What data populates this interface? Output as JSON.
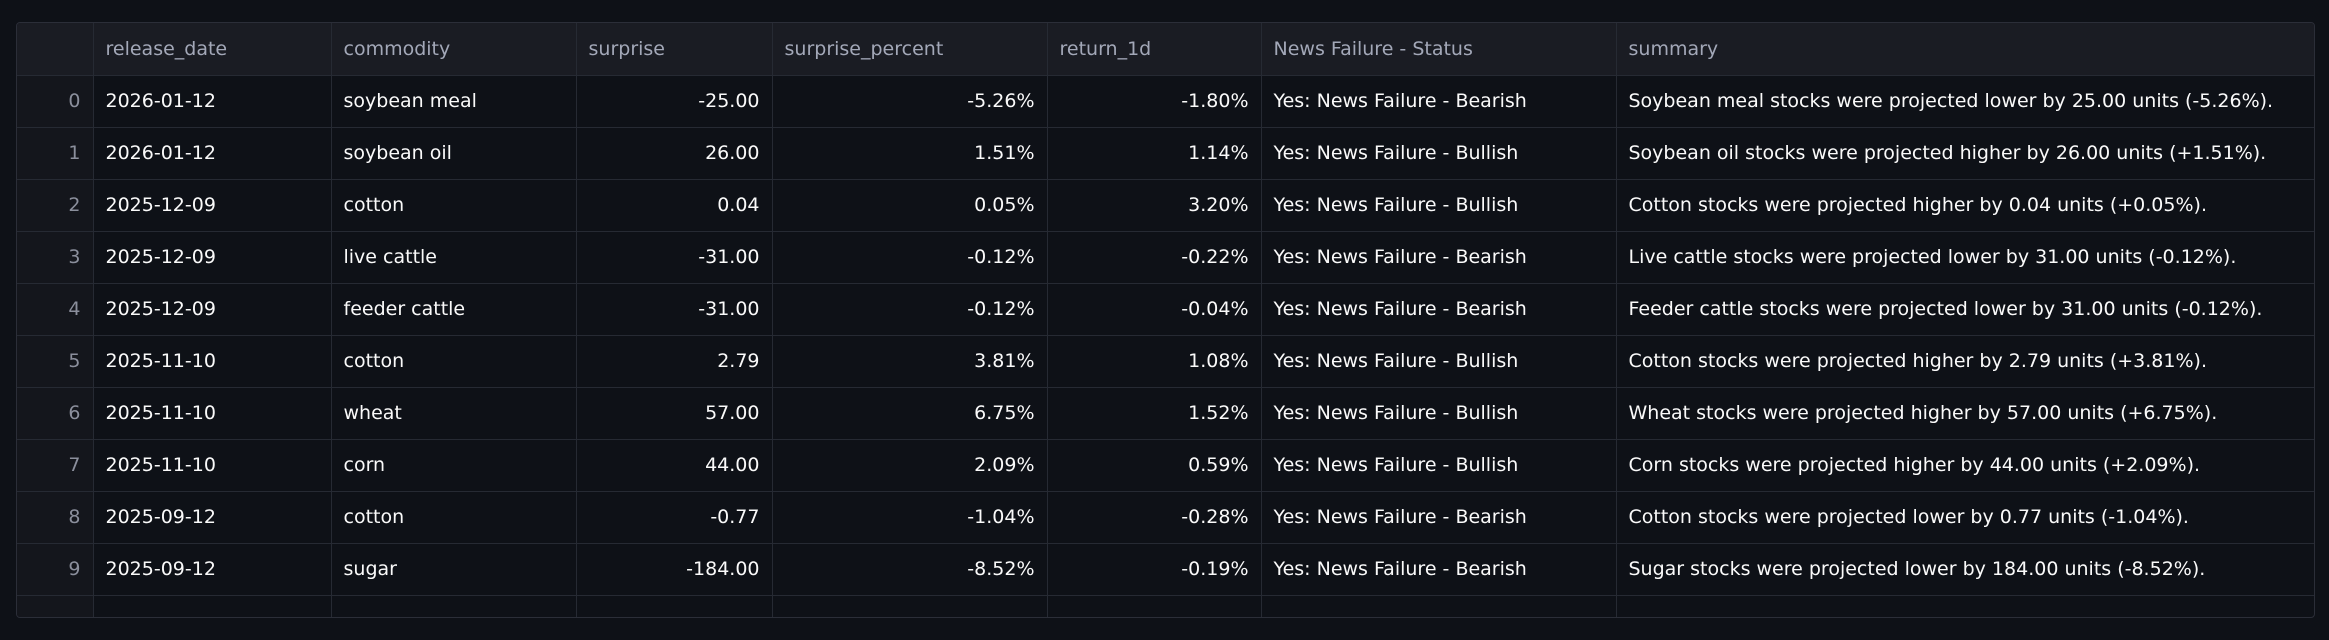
{
  "table": {
    "columns": [
      "release_date",
      "commodity",
      "surprise",
      "surprise_percent",
      "return_1d",
      "News Failure - Status",
      "summary"
    ],
    "index": [
      "0",
      "1",
      "2",
      "3",
      "4",
      "5",
      "6",
      "7",
      "8",
      "9"
    ],
    "rows": [
      [
        "2026-01-12",
        "soybean meal",
        "-25.00",
        "-5.26%",
        "-1.80%",
        "Yes: News Failure - Bearish",
        "Soybean meal stocks were projected lower by 25.00 units (-5.26%)."
      ],
      [
        "2026-01-12",
        "soybean oil",
        "26.00",
        "1.51%",
        "1.14%",
        "Yes: News Failure - Bullish",
        "Soybean oil stocks were projected higher by 26.00 units (+1.51%)."
      ],
      [
        "2025-12-09",
        "cotton",
        "0.04",
        "0.05%",
        "3.20%",
        "Yes: News Failure - Bullish",
        "Cotton stocks were projected higher by 0.04 units (+0.05%)."
      ],
      [
        "2025-12-09",
        "live cattle",
        "-31.00",
        "-0.12%",
        "-0.22%",
        "Yes: News Failure - Bearish",
        "Live cattle stocks were projected lower by 31.00 units (-0.12%)."
      ],
      [
        "2025-12-09",
        "feeder cattle",
        "-31.00",
        "-0.12%",
        "-0.04%",
        "Yes: News Failure - Bearish",
        "Feeder cattle stocks were projected lower by 31.00 units (-0.12%)."
      ],
      [
        "2025-11-10",
        "cotton",
        "2.79",
        "3.81%",
        "1.08%",
        "Yes: News Failure - Bullish",
        "Cotton stocks were projected higher by 2.79 units (+3.81%)."
      ],
      [
        "2025-11-10",
        "wheat",
        "57.00",
        "6.75%",
        "1.52%",
        "Yes: News Failure - Bullish",
        "Wheat stocks were projected higher by 57.00 units (+6.75%)."
      ],
      [
        "2025-11-10",
        "corn",
        "44.00",
        "2.09%",
        "0.59%",
        "Yes: News Failure - Bullish",
        "Corn stocks were projected higher by 44.00 units (+2.09%)."
      ],
      [
        "2025-09-12",
        "cotton",
        "-0.77",
        "-1.04%",
        "-0.28%",
        "Yes: News Failure - Bearish",
        "Cotton stocks were projected lower by 0.77 units (-1.04%)."
      ],
      [
        "2025-09-12",
        "sugar",
        "-184.00",
        "-8.52%",
        "-0.19%",
        "Yes: News Failure - Bearish",
        "Sugar stocks were projected lower by 184.00 units (-8.52%)."
      ]
    ]
  }
}
